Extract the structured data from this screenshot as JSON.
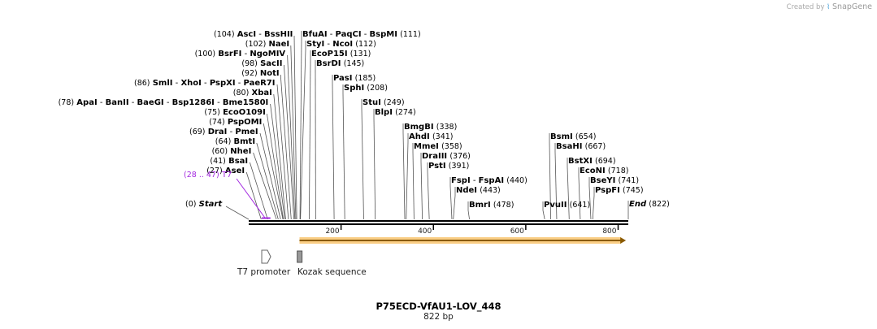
{
  "branding": {
    "created_by": "Created by",
    "app_icon": "snapgene-icon",
    "app_name": "SnapGene"
  },
  "sequence": {
    "name": "P75ECD-VfAU1-LOV_448",
    "length_text": "822 bp",
    "length_bp": 822
  },
  "colors": {
    "t7": "#a329e0",
    "orf_fill": "#f5a623",
    "orf_border": "#8a5a00",
    "kozak": "#999999",
    "backbone": "#000000"
  },
  "axis": {
    "ticks": [
      200,
      400,
      600,
      800
    ]
  },
  "ends": {
    "start_label": "Start",
    "start_pos": "(0)",
    "end_label": "End",
    "end_pos": "(822)"
  },
  "t7_site": {
    "name": "T7",
    "range": "(28 .. 47)",
    "start_bp": 28,
    "end_bp": 47
  },
  "orf": {
    "start_bp": 110,
    "end_bp": 817
  },
  "features": [
    {
      "name": "T7 promoter",
      "type": "promoter",
      "bp": 37
    },
    {
      "name": "Kozak sequence",
      "type": "kozak",
      "bp": 112
    }
  ],
  "enzymes_left": [
    {
      "names": [
        "AscI",
        "BssHII"
      ],
      "pos": "(104)",
      "bp": 104
    },
    {
      "names": [
        "NaeI"
      ],
      "pos": "(102)",
      "bp": 102
    },
    {
      "names": [
        "BsrFI",
        "NgoMIV"
      ],
      "pos": "(100)",
      "bp": 100
    },
    {
      "names": [
        "SacII"
      ],
      "pos": "(98)",
      "bp": 98
    },
    {
      "names": [
        "NotI"
      ],
      "pos": "(92)",
      "bp": 92
    },
    {
      "names": [
        "SmlI",
        "XhoI",
        "PspXI",
        "PaeR7I"
      ],
      "pos": "(86)",
      "bp": 86
    },
    {
      "names": [
        "XbaI"
      ],
      "pos": "(80)",
      "bp": 80
    },
    {
      "names": [
        "ApaI",
        "BanII",
        "BaeGI",
        "Bsp1286I",
        "Bme1580I"
      ],
      "pos": "(78)",
      "bp": 78
    },
    {
      "names": [
        "EcoO109I"
      ],
      "pos": "(75)",
      "bp": 75
    },
    {
      "names": [
        "PspOMI"
      ],
      "pos": "(74)",
      "bp": 74
    },
    {
      "names": [
        "DraI",
        "PmeI"
      ],
      "pos": "(69)",
      "bp": 69
    },
    {
      "names": [
        "BmtI"
      ],
      "pos": "(64)",
      "bp": 64
    },
    {
      "names": [
        "NheI"
      ],
      "pos": "(60)",
      "bp": 60
    },
    {
      "names": [
        "BsaI"
      ],
      "pos": "(41)",
      "bp": 41
    },
    {
      "names": [
        "AseI"
      ],
      "pos": "(27)",
      "bp": 27
    }
  ],
  "enzymes_right": [
    {
      "names": [
        "BfuAI",
        "PaqCI",
        "BspMI"
      ],
      "pos": "(111)",
      "bp": 111
    },
    {
      "names": [
        "StyI",
        "NcoI"
      ],
      "pos": "(112)",
      "bp": 112
    },
    {
      "names": [
        "EcoP15I"
      ],
      "pos": "(131)",
      "bp": 131
    },
    {
      "names": [
        "BsrDI"
      ],
      "pos": "(145)",
      "bp": 145
    },
    {
      "names": [
        "PasI"
      ],
      "pos": "(185)",
      "bp": 185
    },
    {
      "names": [
        "SphI"
      ],
      "pos": "(208)",
      "bp": 208
    },
    {
      "names": [
        "StuI"
      ],
      "pos": "(249)",
      "bp": 249
    },
    {
      "names": [
        "BlpI"
      ],
      "pos": "(274)",
      "bp": 274
    },
    {
      "names": [
        "BmgBI"
      ],
      "pos": "(338)",
      "bp": 338
    },
    {
      "names": [
        "AhdI"
      ],
      "pos": "(341)",
      "bp": 341
    },
    {
      "names": [
        "MmeI"
      ],
      "pos": "(358)",
      "bp": 358
    },
    {
      "names": [
        "DraIII"
      ],
      "pos": "(376)",
      "bp": 376
    },
    {
      "names": [
        "PstI"
      ],
      "pos": "(391)",
      "bp": 391
    },
    {
      "names": [
        "FspI",
        "FspAI"
      ],
      "pos": "(440)",
      "bp": 440
    },
    {
      "names": [
        "NdeI"
      ],
      "pos": "(443)",
      "bp": 443
    },
    {
      "names": [
        "BmrI"
      ],
      "pos": "(478)",
      "bp": 478
    },
    {
      "names": [
        "BsmI"
      ],
      "pos": "(654)",
      "bp": 654
    },
    {
      "names": [
        "BsaHI"
      ],
      "pos": "(667)",
      "bp": 667
    },
    {
      "names": [
        "BstXI"
      ],
      "pos": "(694)",
      "bp": 694
    },
    {
      "names": [
        "EcoNI"
      ],
      "pos": "(718)",
      "bp": 718
    },
    {
      "names": [
        "BseYI"
      ],
      "pos": "(741)",
      "bp": 741
    },
    {
      "names": [
        "PspFI"
      ],
      "pos": "(745)",
      "bp": 745
    },
    {
      "names": [
        "PvuII"
      ],
      "pos": "(641)",
      "bp": 641
    }
  ]
}
